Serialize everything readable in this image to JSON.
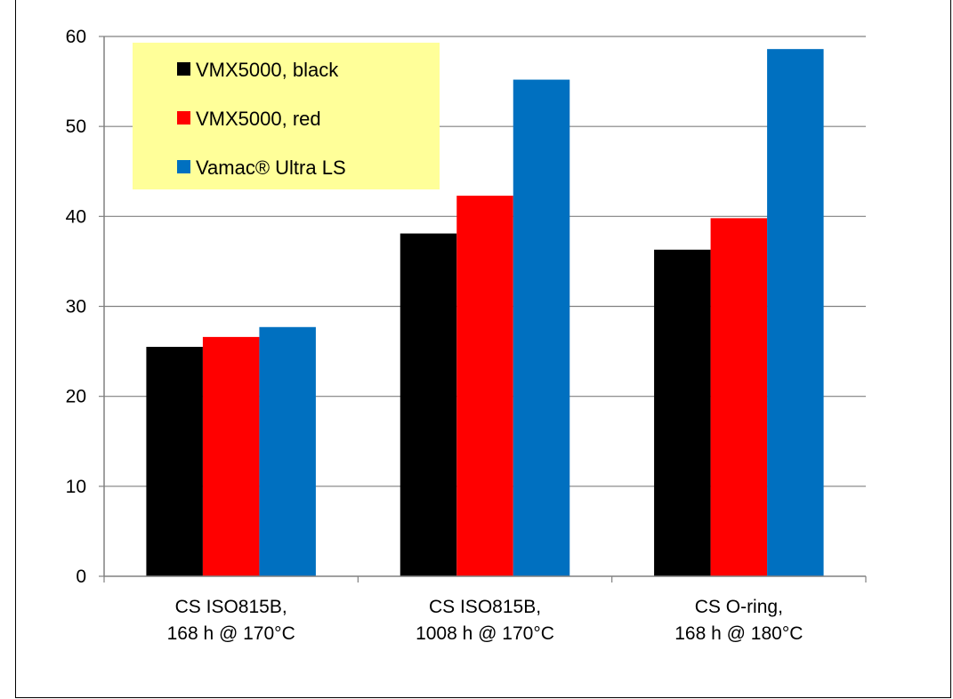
{
  "chart_data": {
    "type": "bar",
    "title": "",
    "xlabel": "",
    "ylabel": "",
    "ylim": [
      0,
      60
    ],
    "yticks": [
      0,
      10,
      20,
      30,
      40,
      50,
      60
    ],
    "grid": true,
    "legend_position": "top-left",
    "categories": [
      [
        "CS ISO815B,",
        "168 h @ 170°C"
      ],
      [
        "CS ISO815B,",
        "1008 h @ 170°C"
      ],
      [
        "CS O-ring,",
        "168 h @ 180°C"
      ]
    ],
    "series": [
      {
        "name": "VMX5000, black",
        "color": "#000000",
        "values": [
          25.5,
          38.1,
          36.3
        ]
      },
      {
        "name": "VMX5000, red",
        "color": "#ff0000",
        "values": [
          26.6,
          42.3,
          39.8
        ]
      },
      {
        "name": "Vamac® Ultra LS",
        "color": "#0070c0",
        "values": [
          27.7,
          55.2,
          58.6
        ]
      }
    ],
    "legend_background": "#ffff99"
  }
}
